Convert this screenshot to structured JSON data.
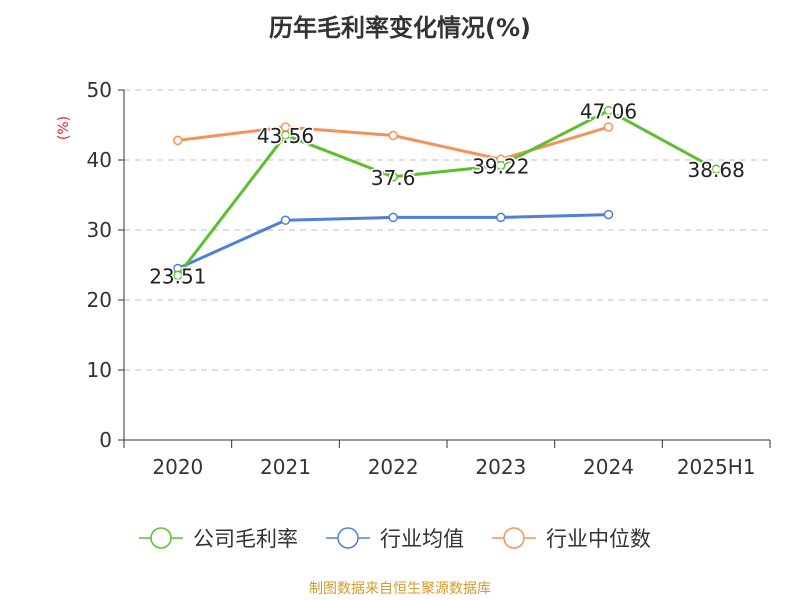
{
  "title": "历年毛利率变化情况(%)",
  "source": "制图数据来自恒生聚源数据库",
  "chart_data": {
    "type": "line",
    "categories": [
      "2020",
      "2021",
      "2022",
      "2023",
      "2024",
      "2025H1"
    ],
    "ylabel": "(%)",
    "ylim": [
      0,
      50
    ],
    "yticks": [
      0,
      10,
      20,
      30,
      40,
      50
    ],
    "grid": true,
    "legend_position": "bottom",
    "series": [
      {
        "name": "公司毛利率",
        "color": "#5cc02d",
        "values": [
          23.51,
          43.56,
          37.6,
          39.22,
          47.06,
          38.68
        ],
        "labels": [
          "23.51",
          "43.56",
          "37.6",
          "39.22",
          "47.06",
          "38.68"
        ]
      },
      {
        "name": "行业均值",
        "color": "#4f80d9",
        "values": [
          24.5,
          31.4,
          31.8,
          31.8,
          32.2,
          null
        ]
      },
      {
        "name": "行业中位数",
        "color": "#f5925a",
        "values": [
          42.8,
          44.7,
          43.5,
          40.1,
          44.7,
          null
        ]
      }
    ]
  }
}
